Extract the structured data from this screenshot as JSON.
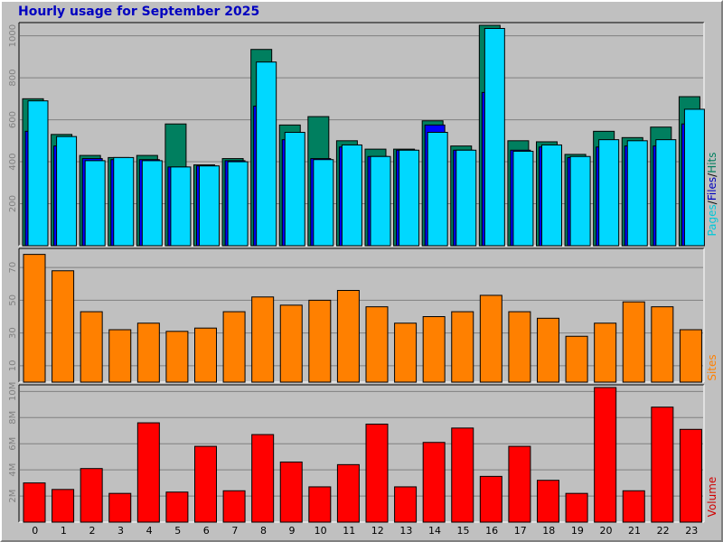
{
  "title": "Hourly usage for September 2025",
  "colors": {
    "background": "#c0c0c0",
    "title": "#0000c0",
    "hits": "#007f5f",
    "files": "#0000ff",
    "pages": "#00d8ff",
    "sites": "#ff8000",
    "volume": "#ff0000",
    "grid": "#808080"
  },
  "chart_data": [
    {
      "type": "bar",
      "ylabel_parts": [
        "Pages",
        "/",
        "Files",
        "/",
        "Hits"
      ],
      "ylabel_colors": [
        "#00c8d8",
        "#000000",
        "#0000c0",
        "#000000",
        "#007f5f"
      ],
      "categories": [
        "0",
        "1",
        "2",
        "3",
        "4",
        "5",
        "6",
        "7",
        "8",
        "9",
        "10",
        "11",
        "12",
        "13",
        "14",
        "15",
        "16",
        "17",
        "18",
        "19",
        "20",
        "21",
        "22",
        "23"
      ],
      "yticks": [
        "200",
        "400",
        "600",
        "800",
        "1000"
      ],
      "ylim": [
        0,
        1050
      ],
      "series": [
        {
          "name": "Hits",
          "values": [
            700,
            530,
            430,
            420,
            430,
            580,
            385,
            415,
            935,
            575,
            615,
            500,
            460,
            460,
            595,
            475,
            1050,
            500,
            495,
            435,
            545,
            515,
            565,
            710
          ]
        },
        {
          "name": "Files",
          "values": [
            545,
            475,
            415,
            410,
            410,
            375,
            380,
            405,
            665,
            505,
            415,
            470,
            425,
            455,
            575,
            455,
            730,
            455,
            470,
            420,
            470,
            475,
            475,
            580
          ]
        },
        {
          "name": "Pages",
          "values": [
            690,
            520,
            405,
            420,
            405,
            375,
            380,
            400,
            875,
            540,
            410,
            480,
            425,
            455,
            540,
            455,
            1035,
            450,
            480,
            425,
            505,
            500,
            505,
            650
          ]
        }
      ]
    },
    {
      "type": "bar",
      "ylabel": "Sites",
      "categories": [
        "0",
        "1",
        "2",
        "3",
        "4",
        "5",
        "6",
        "7",
        "8",
        "9",
        "10",
        "11",
        "12",
        "13",
        "14",
        "15",
        "16",
        "17",
        "18",
        "19",
        "20",
        "21",
        "22",
        "23"
      ],
      "yticks": [
        "10",
        "30",
        "50",
        "70"
      ],
      "ylim": [
        0,
        80
      ],
      "series": [
        {
          "name": "Sites",
          "values": [
            78,
            68,
            43,
            32,
            36,
            31,
            33,
            43,
            52,
            47,
            50,
            56,
            46,
            36,
            40,
            43,
            53,
            43,
            39,
            28,
            36,
            49,
            46,
            32
          ]
        }
      ]
    },
    {
      "type": "bar",
      "ylabel": "Volume",
      "categories": [
        "0",
        "1",
        "2",
        "3",
        "4",
        "5",
        "6",
        "7",
        "8",
        "9",
        "10",
        "11",
        "12",
        "13",
        "14",
        "15",
        "16",
        "17",
        "18",
        "19",
        "20",
        "21",
        "22",
        "23"
      ],
      "yticks": [
        "2M",
        "4M",
        "6M",
        "8M",
        "10M"
      ],
      "ylim": [
        0,
        10.3
      ],
      "series": [
        {
          "name": "Volume",
          "values": [
            3.0,
            2.5,
            4.1,
            2.2,
            7.6,
            2.3,
            5.8,
            2.4,
            6.7,
            4.6,
            2.7,
            4.4,
            7.5,
            2.7,
            6.1,
            7.2,
            3.5,
            5.8,
            3.2,
            2.2,
            10.3,
            2.4,
            8.8,
            7.1
          ]
        }
      ]
    }
  ]
}
